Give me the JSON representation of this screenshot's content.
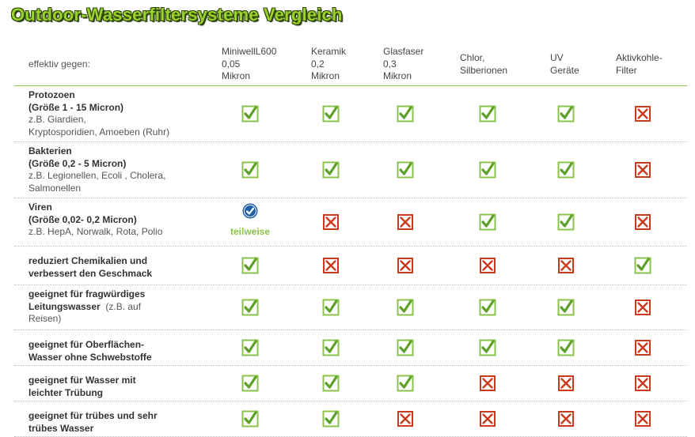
{
  "title": "Outdoor-Wasserfiltersysteme Vergleich",
  "header": {
    "effective_against": "effektiv gegen:",
    "columns": [
      [
        "MiniwellL600",
        "0,05",
        "Mikron"
      ],
      [
        "Keramik",
        "0,2",
        "Mikron"
      ],
      [
        "Glasfaser",
        "0,3",
        "Mikron"
      ],
      [
        "Chlor,",
        "Silberionen"
      ],
      [
        "UV",
        "Geräte"
      ],
      [
        "Aktivkohle-",
        "Filter"
      ]
    ]
  },
  "rows": [
    {
      "lines": [
        [
          "Protozoen",
          true
        ],
        [
          "(Größe 1 - 15 Micron)",
          true
        ],
        [
          "z.B. Giardien,",
          false
        ],
        [
          "Kryptosporidien, Amoeben (Ruhr)",
          false
        ]
      ],
      "values": [
        "yes",
        "yes",
        "yes",
        "yes",
        "yes",
        "no"
      ]
    },
    {
      "lines": [
        [
          "Bakterien",
          true
        ],
        [
          "(Größe 0,2 - 5 Micron)",
          true
        ],
        [
          "z.B. Legionellen, Ecoli , Cholera,",
          false
        ],
        [
          "Salmonellen",
          false
        ]
      ],
      "values": [
        "yes",
        "yes",
        "yes",
        "yes",
        "yes",
        "no"
      ]
    },
    {
      "lines": [
        [
          "Viren",
          true
        ],
        [
          "(Größe 0,02- 0,2 Micron)",
          true
        ],
        [
          "z.B.  HepA, Norwalk, Rota, Polio",
          false
        ]
      ],
      "values": [
        "partial",
        "no",
        "no",
        "yes",
        "yes",
        "no"
      ]
    },
    {
      "lines": [
        [
          "reduziert Chemikalien und",
          true
        ],
        [
          "verbessert den Geschmack",
          true
        ]
      ],
      "values": [
        "yes",
        "no",
        "no",
        "no",
        "no",
        "yes"
      ]
    },
    {
      "lines": [
        [
          "geeignet für fragwürdiges",
          true
        ],
        [
          "Leitungswasser",
          true,
          "  (z.B. auf"
        ],
        [
          "Reisen)",
          false
        ]
      ],
      "values": [
        "yes",
        "yes",
        "yes",
        "yes",
        "yes",
        "no"
      ]
    },
    {
      "lines": [
        [
          "geeignet für Oberflächen-",
          true
        ],
        [
          "Wasser ohne Schwebstoffe",
          true
        ]
      ],
      "values": [
        "yes",
        "yes",
        "yes",
        "yes",
        "yes",
        "no"
      ]
    },
    {
      "lines": [
        [
          "geeignet für Wasser mit",
          true
        ],
        [
          "leichter Trübung",
          true
        ]
      ],
      "values": [
        "yes",
        "yes",
        "yes",
        "no",
        "no",
        "no"
      ]
    },
    {
      "lines": [
        [
          "geeignet für trübes und sehr",
          true
        ],
        [
          "trübes Wasser",
          true
        ]
      ],
      "values": [
        "yes",
        "yes",
        "no",
        "no",
        "no",
        "no"
      ]
    }
  ],
  "partial_label": "teilweise",
  "colors": {
    "check_border": "#8bc34a",
    "check_mark": "#5ea12a",
    "cross": "#cc3a1e",
    "divider": "#8fc44a",
    "badge": "#1f5fa8"
  },
  "icons": {
    "yes": "checkbox-checked-icon",
    "no": "checkbox-cross-icon",
    "partial": "blue-check-badge-icon"
  }
}
